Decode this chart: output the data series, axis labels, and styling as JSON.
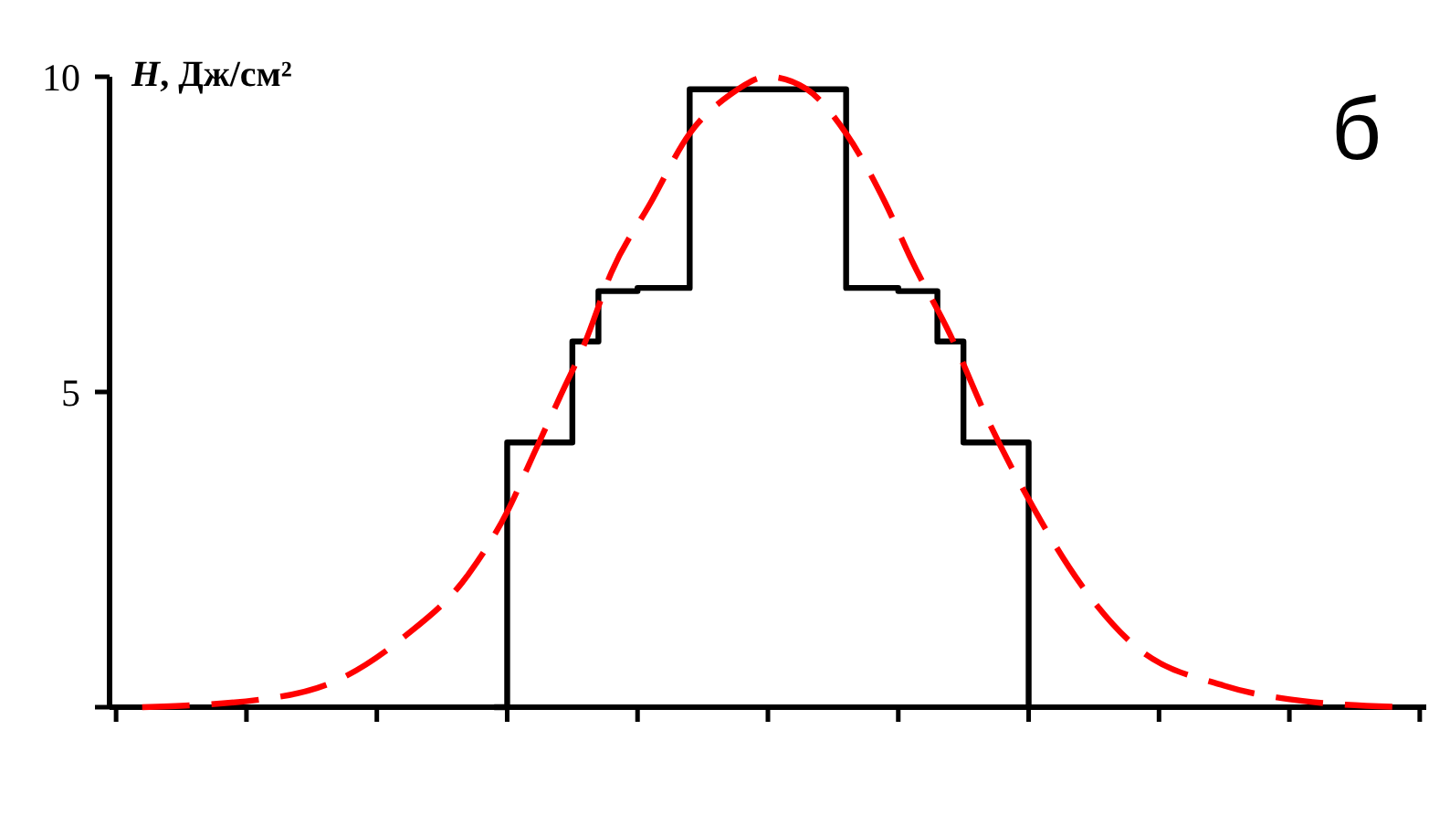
{
  "chart_data": {
    "type": "line",
    "ylabel": "H, Дж/см²",
    "annotations": [
      "б"
    ],
    "categories": [
      null,
      null,
      null,
      null,
      null,
      null,
      null,
      null,
      null,
      null,
      null,
      null,
      null,
      null,
      null,
      null,
      null,
      null,
      null,
      null,
      null,
      null,
      null,
      null,
      null,
      null,
      null,
      null,
      null,
      null,
      null,
      null,
      null,
      null,
      null,
      null,
      null,
      null,
      null,
      null,
      null,
      null,
      null,
      null,
      null,
      null,
      null,
      null,
      null,
      null,
      null,
      null,
      null,
      null,
      null,
      null,
      null,
      null,
      null,
      null,
      null,
      null,
      null,
      null,
      null,
      null,
      null,
      null,
      null,
      null,
      null,
      null,
      null,
      null,
      null,
      null,
      null,
      null,
      null,
      null,
      null,
      null,
      null,
      null,
      null,
      null,
      null,
      null,
      null,
      null,
      null,
      null,
      null,
      null,
      null,
      null,
      null,
      null,
      null,
      null,
      null
    ],
    "ylim": [
      0,
      10
    ],
    "yticks": [
      {
        "value": 0,
        "label": null
      },
      5,
      10
    ],
    "tick_labels": "y",
    "marker": "none",
    "series": [
      {
        "type": "step",
        "color": "#000000",
        "line_style": "solid",
        "values": [
          null,
          null,
          null,
          null,
          null,
          null,
          null,
          null,
          null,
          null,
          null,
          null,
          null,
          null,
          null,
          null,
          null,
          null,
          null,
          null,
          null,
          null,
          null,
          null,
          null,
          null,
          null,
          null,
          null,
          0,
          4.2,
          null,
          null,
          null,
          null,
          5.8,
          null,
          6.6,
          null,
          null,
          6.65,
          null,
          null,
          null,
          9.8,
          null,
          null,
          null,
          null,
          null,
          null,
          null,
          null,
          null,
          null,
          null,
          6.65,
          null,
          null,
          null,
          6.6,
          null,
          null,
          5.8,
          null,
          4.2,
          null,
          null,
          null,
          null,
          0,
          null,
          null,
          null,
          null,
          null,
          null,
          null,
          null,
          null,
          null,
          null,
          null,
          null,
          null,
          null,
          null,
          null,
          null,
          null,
          null,
          null,
          null,
          null,
          null,
          null,
          null,
          null,
          null,
          null,
          null
        ]
      },
      {
        "type": "line",
        "color": "#ff0000",
        "line_style": "dashed",
        "values": [
          null,
          null,
          0,
          null,
          null,
          null,
          null,
          null,
          null,
          null,
          null,
          0.12,
          null,
          null,
          null,
          null,
          null,
          0.43,
          null,
          null,
          null,
          null,
          1.1,
          null,
          null,
          null,
          null,
          2.1,
          null,
          null,
          3.1,
          null,
          4.0,
          null,
          4.9,
          null,
          5.8,
          null,
          6.9,
          null,
          null,
          8.0,
          null,
          null,
          9.1,
          null,
          null,
          9.7,
          null,
          null,
          10,
          null,
          null,
          9.8,
          null,
          null,
          9.1,
          null,
          null,
          8.0,
          null,
          7.1,
          null,
          null,
          5.9,
          null,
          null,
          4.5,
          null,
          null,
          3.3,
          null,
          null,
          null,
          1.95,
          null,
          null,
          null,
          1.0,
          null,
          null,
          null,
          null,
          null,
          null,
          0.34,
          null,
          null,
          null,
          null,
          null,
          0.1,
          null,
          null,
          null,
          null,
          null,
          null,
          null,
          0,
          null
        ]
      }
    ]
  }
}
